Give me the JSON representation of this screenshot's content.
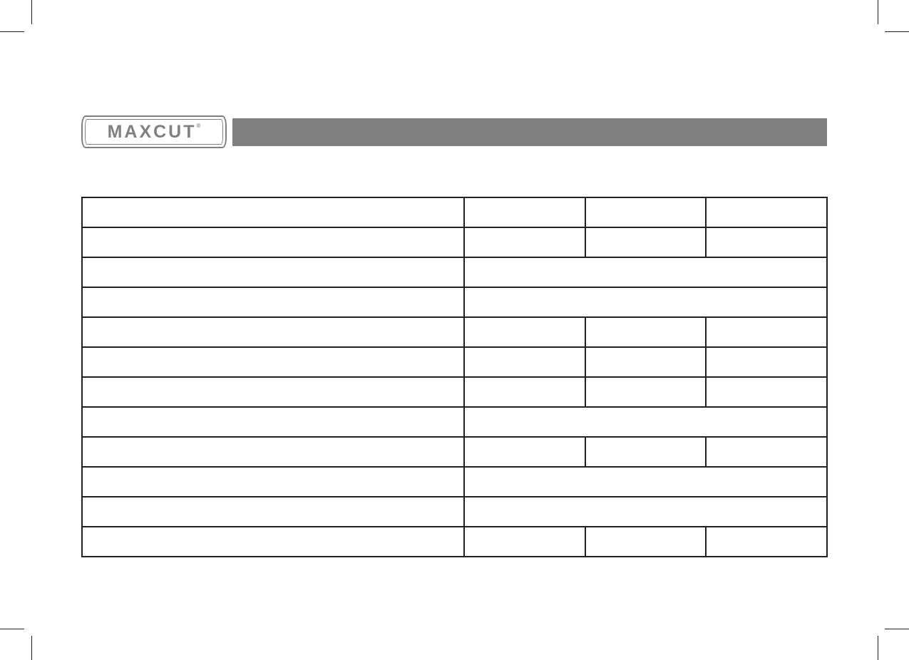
{
  "logo": {
    "text": "MAXCUT",
    "registered": "®"
  },
  "colors": {
    "header_bar": "#807e7f",
    "logo": "#808080",
    "grid": "#231f20"
  },
  "table": {
    "rows": [
      {
        "merged": false,
        "cells": [
          "",
          "",
          "",
          ""
        ]
      },
      {
        "merged": false,
        "cells": [
          "",
          "",
          "",
          ""
        ]
      },
      {
        "merged": true,
        "cells": [
          "",
          ""
        ]
      },
      {
        "merged": true,
        "cells": [
          "",
          ""
        ]
      },
      {
        "merged": false,
        "cells": [
          "",
          "",
          "",
          ""
        ]
      },
      {
        "merged": false,
        "cells": [
          "",
          "",
          "",
          ""
        ]
      },
      {
        "merged": false,
        "cells": [
          "",
          "",
          "",
          ""
        ]
      },
      {
        "merged": true,
        "cells": [
          "",
          ""
        ]
      },
      {
        "merged": false,
        "cells": [
          "",
          "",
          "",
          ""
        ]
      },
      {
        "merged": true,
        "cells": [
          "",
          ""
        ]
      },
      {
        "merged": true,
        "cells": [
          "",
          ""
        ]
      },
      {
        "merged": false,
        "cells": [
          "",
          "",
          "",
          ""
        ]
      }
    ]
  }
}
